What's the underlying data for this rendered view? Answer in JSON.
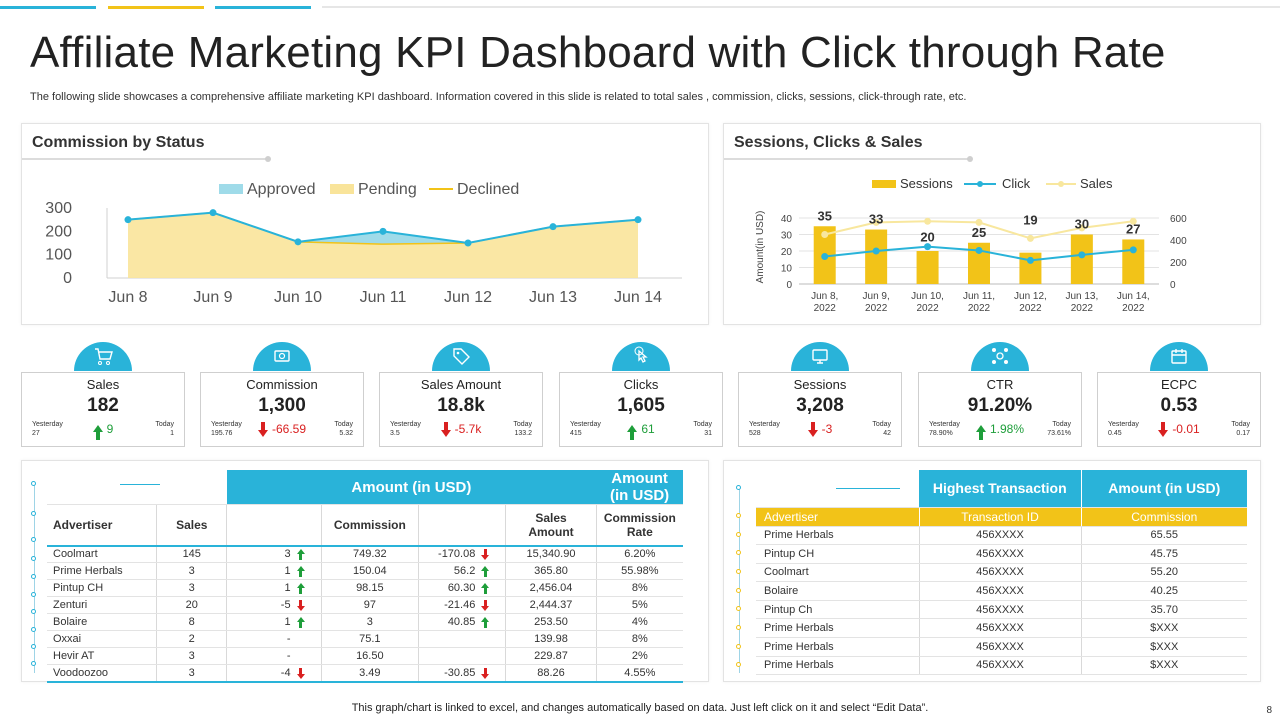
{
  "title": "Affiliate Marketing KPI Dashboard with Click through Rate",
  "subtitle": "The following slide showcases a comprehensive affiliate marketing KPI dashboard. Information covered in this slide is related to total sales , commission, clicks, sessions, click-through rate, etc.",
  "colors": {
    "blue": "#29b3d9",
    "yellow": "#f2c318",
    "pending": "#f9e49a",
    "approved": "#9fdbe9",
    "up": "#1e9e3a",
    "down": "#d92020"
  },
  "chart_data": [
    {
      "type": "area",
      "title": "Commission by Status",
      "categories": [
        "Jun 8",
        "Jun 9",
        "Jun 10",
        "Jun 11",
        "Jun 12",
        "Jun 13",
        "Jun 14"
      ],
      "series": [
        {
          "name": "Approved",
          "values": [
            250,
            280,
            155,
            200,
            150,
            220,
            250
          ]
        },
        {
          "name": "Pending",
          "values": [
            250,
            280,
            150,
            145,
            150,
            220,
            250
          ]
        },
        {
          "name": "Declined",
          "values": [
            250,
            280,
            155,
            145,
            150,
            220,
            250
          ]
        }
      ],
      "yticks": [
        "0",
        "100",
        "200",
        "300"
      ],
      "ylim": [
        0,
        300
      ],
      "legend": "top"
    },
    {
      "type": "bar",
      "title": "Sessions, Clicks & Sales",
      "categories": [
        "Jun 8, 2022",
        "Jun 9, 2022",
        "Jun 10, 2022",
        "Jun 11, 2022",
        "Jun 12, 2022",
        "Jun 13, 2022",
        "Jun 14, 2022"
      ],
      "category_lines": [
        [
          "Jun 8,",
          "2022"
        ],
        [
          "Jun 9,",
          "2022"
        ],
        [
          "Jun 10,",
          "2022"
        ],
        [
          "Jun 11,",
          "2022"
        ],
        [
          "Jun 12,",
          "2022"
        ],
        [
          "Jun 13,",
          "2022"
        ],
        [
          "Jun 14,",
          "2022"
        ]
      ],
      "series": [
        {
          "name": "Sessions",
          "type": "bar",
          "axis": "left",
          "values": [
            35,
            33,
            20,
            25,
            19,
            30,
            27
          ],
          "labels": [
            "35",
            "33",
            "20",
            "25",
            "19",
            "30",
            "27"
          ]
        },
        {
          "name": "Click",
          "type": "line",
          "axis": "right",
          "values": [
            250,
            300,
            340,
            305,
            215,
            265,
            310
          ]
        },
        {
          "name": "Sales",
          "type": "line",
          "axis": "right",
          "values": [
            450,
            560,
            570,
            560,
            415,
            510,
            570
          ]
        }
      ],
      "ylabel": "Amount(in USD)",
      "yticks_left": [
        "0",
        "10",
        "20",
        "30",
        "40"
      ],
      "yticks_right": [
        "0",
        "200",
        "400",
        "600"
      ],
      "ylim_left": [
        0,
        40
      ],
      "ylim_right": [
        0,
        600
      ],
      "legend": "top"
    }
  ],
  "kpis": [
    {
      "label": "Sales",
      "value": "182",
      "yesterday_label": "Yesterday",
      "yesterday": "27",
      "today_label": "Today",
      "today": "1",
      "delta": "9",
      "dir": "up",
      "icon": "cart-icon"
    },
    {
      "label": "Commission",
      "value": "1,300",
      "yesterday_label": "Yesterday",
      "yesterday": "195.76",
      "today_label": "Today",
      "today": "5.32",
      "delta": "-66.59",
      "dir": "down",
      "icon": "money-icon"
    },
    {
      "label": "Sales Amount",
      "value": "18.8k",
      "yesterday_label": "Yesterday",
      "yesterday": "3.5",
      "today_label": "Today",
      "today": "133.2",
      "delta": "-5.7k",
      "dir": "down",
      "icon": "price-tag-icon"
    },
    {
      "label": "Clicks",
      "value": "1,605",
      "yesterday_label": "Yesterday",
      "yesterday": "415",
      "today_label": "Today",
      "today": "31",
      "delta": "61",
      "dir": "up",
      "icon": "click-icon"
    },
    {
      "label": "Sessions",
      "value": "3,208",
      "yesterday_label": "Yesterday",
      "yesterday": "528",
      "today_label": "Today",
      "today": "42",
      "delta": "-3",
      "dir": "down",
      "icon": "sessions-icon"
    },
    {
      "label": "CTR",
      "value": "91.20%",
      "yesterday_label": "Yesterday",
      "yesterday": "78.90%",
      "today_label": "Today",
      "today": "73.61%",
      "delta": "1.98%",
      "dir": "up",
      "icon": "network-icon"
    },
    {
      "label": "ECPC",
      "value": "0.53",
      "yesterday_label": "Yesterday",
      "yesterday": "0.45",
      "today_label": "Today",
      "today": "0.17",
      "delta": "-0.01",
      "dir": "down",
      "icon": "calendar-icon"
    }
  ],
  "advertiser_table": {
    "group_headers": [
      "Amount (in USD)",
      "Amount (in USD)"
    ],
    "columns": [
      "Advertiser",
      "Sales",
      "Commission",
      "Sales Amount",
      "Commission Rate"
    ],
    "rows": [
      {
        "advertiser": "Coolmart",
        "sales": "145",
        "sales_change": "3",
        "sales_dir": "up",
        "commission": "749.32",
        "commission_change": "-170.08",
        "commission_dir": "down",
        "sales_amount": "15,340.90",
        "rate": "6.20%"
      },
      {
        "advertiser": "Prime Herbals",
        "sales": "3",
        "sales_change": "1",
        "sales_dir": "up",
        "commission": "150.04",
        "commission_change": "56.2",
        "commission_dir": "up",
        "sales_amount": "365.80",
        "rate": "55.98%"
      },
      {
        "advertiser": "Pintup CH",
        "sales": "3",
        "sales_change": "1",
        "sales_dir": "up",
        "commission": "98.15",
        "commission_change": "60.30",
        "commission_dir": "up",
        "sales_amount": "2,456.04",
        "rate": "8%"
      },
      {
        "advertiser": "Zenturi",
        "sales": "20",
        "sales_change": "-5",
        "sales_dir": "down",
        "commission": "97",
        "commission_change": "-21.46",
        "commission_dir": "down",
        "sales_amount": "2,444.37",
        "rate": "5%"
      },
      {
        "advertiser": "Bolaire",
        "sales": "8",
        "sales_change": "1",
        "sales_dir": "up",
        "commission": "3",
        "commission_change": "40.85",
        "commission_dir": "up",
        "sales_amount": "253.50",
        "rate": "4%"
      },
      {
        "advertiser": "Oxxai",
        "sales": "2",
        "sales_change": "-",
        "sales_dir": "",
        "commission": "75.1",
        "commission_change": "",
        "commission_dir": "",
        "sales_amount": "139.98",
        "rate": "8%"
      },
      {
        "advertiser": "Hevir AT",
        "sales": "3",
        "sales_change": "-",
        "sales_dir": "",
        "commission": "16.50",
        "commission_change": "",
        "commission_dir": "",
        "sales_amount": "229.87",
        "rate": "2%"
      },
      {
        "advertiser": "Voodoozoo",
        "sales": "3",
        "sales_change": "-4",
        "sales_dir": "down",
        "commission": "3.49",
        "commission_change": "-30.85",
        "commission_dir": "down",
        "sales_amount": "88.26",
        "rate": "4.55%"
      }
    ]
  },
  "transaction_table": {
    "group_headers": [
      "Highest Transaction",
      "Amount (in USD)"
    ],
    "columns": [
      "Advertiser",
      "Transaction ID",
      "Commission"
    ],
    "rows": [
      {
        "advertiser": "Prime Herbals",
        "id": "456XXXX",
        "commission": "65.55"
      },
      {
        "advertiser": "Pintup CH",
        "id": "456XXXX",
        "commission": "45.75"
      },
      {
        "advertiser": "Coolmart",
        "id": "456XXXX",
        "commission": "55.20"
      },
      {
        "advertiser": "Bolaire",
        "id": "456XXXX",
        "commission": "40.25"
      },
      {
        "advertiser": "Pintup Ch",
        "id": "456XXXX",
        "commission": "35.70"
      },
      {
        "advertiser": "Prime Herbals",
        "id": "456XXXX",
        "commission": "$XXX"
      },
      {
        "advertiser": "Prime Herbals",
        "id": "456XXXX",
        "commission": "$XXX"
      },
      {
        "advertiser": "Prime Herbals",
        "id": "456XXXX",
        "commission": "$XXX"
      }
    ]
  },
  "footer": "This graph/chart is linked to excel,  and changes automatically based on data. Just left click on it and select “Edit Data”.",
  "page_number": "8"
}
